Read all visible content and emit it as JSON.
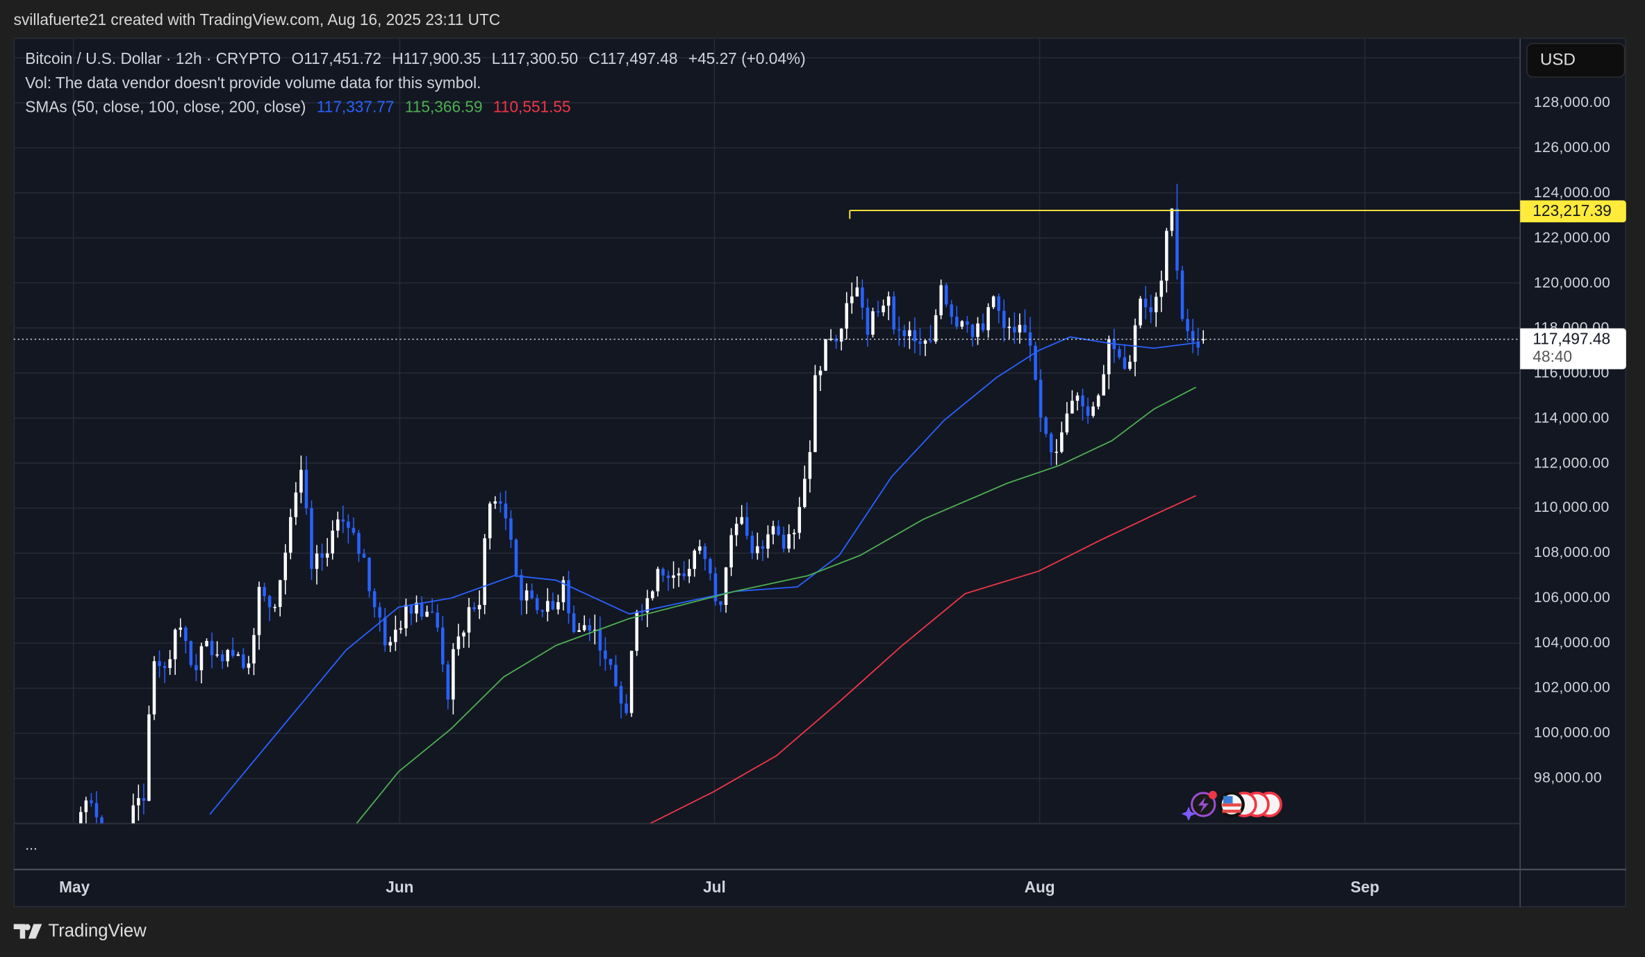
{
  "header": {
    "credit": "svillafuerte21 created with TradingView.com, Aug 16, 2025 23:11 UTC"
  },
  "legend": {
    "symbol": "Bitcoin / U.S. Dollar · 12h · CRYPTO",
    "open": "O117,451.72",
    "high": "H117,900.35",
    "low": "L117,300.50",
    "close": "C117,497.48",
    "change": "+45.27 (+0.04%)",
    "vol": "Vol: The data vendor doesn't provide volume data for this symbol.",
    "sma_label": "SMAs (50, close, 100, close, 200, close)",
    "sma50": "117,337.77",
    "sma100": "115,366.59",
    "sma200": "110,551.55"
  },
  "price_axis": {
    "currency": "USD",
    "ticks": [
      "128,000.00",
      "126,000.00",
      "124,000.00",
      "122,000.00",
      "120,000.00",
      "118,000.00",
      "116,000.00",
      "114,000.00",
      "112,000.00",
      "110,000.00",
      "108,000.00",
      "106,000.00",
      "104,000.00",
      "102,000.00",
      "100,000.00",
      "98,000.00"
    ],
    "horizontal_line_label": "123,217.39",
    "last_price_label": "117,497.48",
    "countdown": "48:40"
  },
  "time_axis": {
    "labels": [
      "May",
      "Jun",
      "Jul",
      "Aug",
      "Sep"
    ]
  },
  "pane": {
    "more": "..."
  },
  "footer": {
    "logo_text": "TradingView"
  },
  "colors": {
    "up": "#ffffff",
    "down": "#2962ff",
    "sma50": "#2962ff",
    "sma100": "#4caf50",
    "sma200": "#f23645",
    "hline": "#ffeb3b",
    "background": "#131722"
  },
  "chart_data": {
    "type": "candlestick",
    "interval": "12h",
    "ylim": [
      96400,
      129500
    ],
    "grid": true,
    "daily_close_start": "2025-04-25",
    "daily_close_k": [
      94.7,
      94.6,
      93.7,
      95.0,
      94.3,
      94.2,
      96.5,
      96.9,
      95.9,
      94.3,
      94.7,
      96.8,
      97.0,
      103.2,
      102.9,
      104.6,
      104.1,
      102.8,
      104.1,
      103.5,
      103.7,
      103.5,
      103.1,
      106.5,
      105.6,
      106.8,
      109.6,
      111.7,
      107.3,
      107.8,
      109.0,
      109.4,
      108.9,
      107.8,
      105.6,
      103.9,
      104.6,
      105.7,
      105.8,
      105.4,
      104.7,
      101.5,
      104.3,
      105.6,
      105.7,
      110.2,
      110.2,
      108.6,
      105.9,
      106.0,
      105.4,
      105.5,
      106.8,
      104.5,
      104.8,
      104.6,
      103.3,
      102.1,
      100.9,
      105.4,
      106.0,
      107.3,
      106.9,
      107.1,
      107.3,
      108.3,
      107.1,
      105.7,
      108.8,
      109.6,
      108.0,
      108.2,
      109.2,
      108.2,
      108.9,
      111.3,
      115.9,
      117.5,
      117.4,
      119.1,
      119.8,
      117.7,
      118.7,
      119.4,
      117.9,
      117.9,
      117.3,
      117.4,
      119.9,
      118.5,
      118.3,
      117.6,
      117.9,
      119.4,
      118.0,
      117.8,
      117.8,
      115.7,
      113.3,
      112.5,
      114.2,
      115.0,
      114.1,
      115.0,
      117.5,
      116.7,
      116.5,
      119.3,
      118.7,
      120.1,
      123.3,
      118.4,
      117.4,
      117.5
    ],
    "last_candle": {
      "open": 117451.72,
      "high": 117900.35,
      "low": 117300.5,
      "close": 117497.48
    },
    "peak_high": {
      "date": "2025-08-14",
      "value": 124400
    },
    "horizontal_line": {
      "value": 123217.39,
      "from": "2025-07-14"
    },
    "last_price": 117497.48,
    "sma_series": [
      {
        "name": "SMA 50",
        "points": [
          [
            "2025-05-14",
            96400
          ],
          [
            "2025-05-17",
            98100
          ],
          [
            "2025-05-22",
            100900
          ],
          [
            "2025-05-27",
            103700
          ],
          [
            "2025-06-01",
            105600
          ],
          [
            "2025-06-06",
            106000
          ],
          [
            "2025-06-12",
            107000
          ],
          [
            "2025-06-16",
            106800
          ],
          [
            "2025-06-23",
            105300
          ],
          [
            "2025-06-28",
            105800
          ],
          [
            "2025-07-03",
            106300
          ],
          [
            "2025-07-09",
            106500
          ],
          [
            "2025-07-13",
            107900
          ],
          [
            "2025-07-18",
            111400
          ],
          [
            "2025-07-23",
            113900
          ],
          [
            "2025-07-28",
            115800
          ],
          [
            "2025-08-01",
            117000
          ],
          [
            "2025-08-04",
            117600
          ],
          [
            "2025-08-08",
            117300
          ],
          [
            "2025-08-12",
            117100
          ],
          [
            "2025-08-16",
            117338
          ]
        ]
      },
      {
        "name": "SMA 100",
        "points": [
          [
            "2025-05-28",
            96000
          ],
          [
            "2025-06-01",
            98300
          ],
          [
            "2025-06-06",
            100200
          ],
          [
            "2025-06-11",
            102500
          ],
          [
            "2025-06-16",
            103900
          ],
          [
            "2025-06-23",
            105100
          ],
          [
            "2025-06-28",
            105700
          ],
          [
            "2025-07-03",
            106300
          ],
          [
            "2025-07-10",
            107000
          ],
          [
            "2025-07-15",
            107900
          ],
          [
            "2025-07-21",
            109500
          ],
          [
            "2025-07-29",
            111100
          ],
          [
            "2025-08-03",
            111900
          ],
          [
            "2025-08-08",
            113000
          ],
          [
            "2025-08-12",
            114400
          ],
          [
            "2025-08-16",
            115367
          ]
        ]
      },
      {
        "name": "SMA 200",
        "points": [
          [
            "2025-06-25",
            96000
          ],
          [
            "2025-07-01",
            97400
          ],
          [
            "2025-07-07",
            99000
          ],
          [
            "2025-07-13",
            101400
          ],
          [
            "2025-07-19",
            103900
          ],
          [
            "2025-07-25",
            106200
          ],
          [
            "2025-08-01",
            107200
          ],
          [
            "2025-08-07",
            108600
          ],
          [
            "2025-08-12",
            109700
          ],
          [
            "2025-08-16",
            110552
          ]
        ]
      }
    ]
  }
}
